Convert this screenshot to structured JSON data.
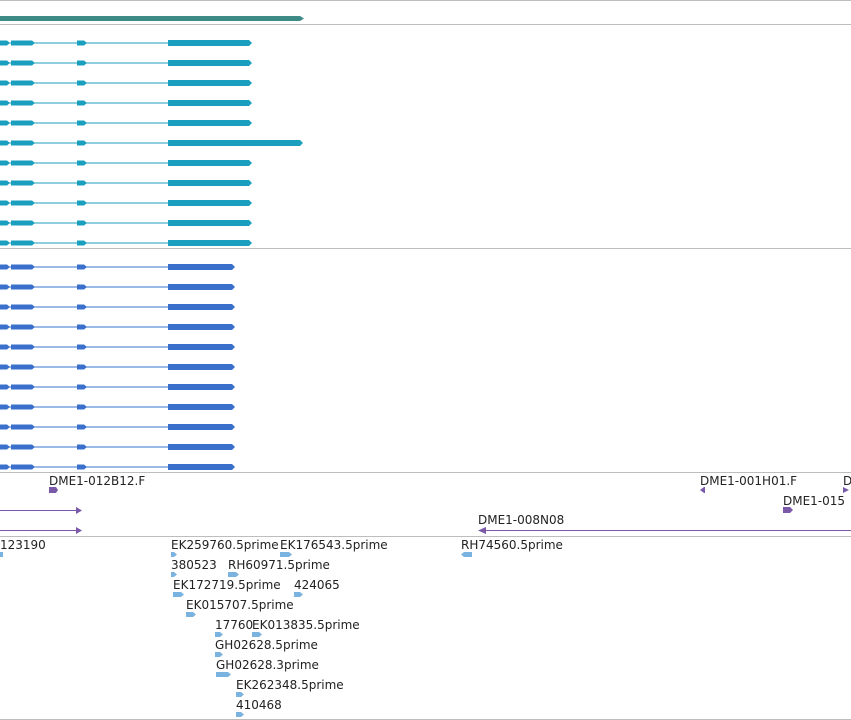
{
  "colors": {
    "background": "#ffffff",
    "separator": "#bdbdbd",
    "summary_bar": "#3e8a86",
    "transcript_group_1": "#1b9fbe",
    "transcript_group_2": "#3a70cc",
    "clone_feature": "#7a5aa8",
    "est_feature": "#7ab2e0",
    "label_text": "#222222"
  },
  "tracks": {
    "gene_summary": {
      "feature_count": 1
    },
    "transcripts_group_1": {
      "transcript_count": 11,
      "extended_transcript_index": 5,
      "exon_glyph": "arrow-right"
    },
    "transcripts_group_2": {
      "transcript_count": 11,
      "exon_glyph": "arrow-right"
    },
    "clones": {
      "labels": [
        "DME1-012B12.F",
        "DME1-001H01.F",
        "D",
        "DME1-015",
        "DME1-008N08"
      ]
    },
    "ests": {
      "labels": [
        "123190",
        "EK259760.5prime",
        "EK176543.5prime",
        "RH74560.5prime",
        "380523",
        "RH60971.5prime",
        "EK172719.5prime",
        "424065",
        "EK015707.5prime",
        "17760",
        "EK013835.5prime",
        "GH02628.5prime",
        "GH02628.3prime",
        "EK262348.5prime",
        "410468"
      ]
    }
  }
}
